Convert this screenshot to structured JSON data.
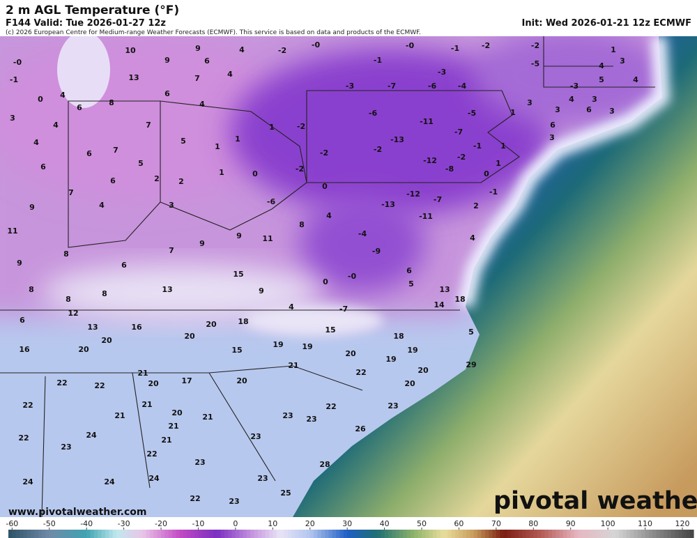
{
  "header": {
    "title": "2 m AGL Temperature (°F)",
    "valid": "F144 Valid: Tue 2026-01-27 12z",
    "credit": "(c) 2026 European Centre for Medium-range Weather Forecasts (ECMWF). This service is based on data and products of the ECMWF.",
    "init": "Init: Wed 2026-01-21 12z ECMWF"
  },
  "footer": {
    "website": "www.pivotalweather.com",
    "logo": "pivotal weather"
  },
  "map": {
    "stations": [
      {
        "value": 0,
        "label": "-0"
      },
      10,
      9,
      4,
      -2,
      {
        "value": 0,
        "label": "-0"
      },
      {
        "value": 0,
        "label": "-0"
      },
      -1,
      -2,
      -2,
      1,
      -1,
      9,
      6,
      -1,
      -5,
      4,
      3,
      13,
      7,
      -3,
      5,
      4,
      4,
      6,
      4,
      -3,
      -7,
      -6,
      -4,
      -3,
      0,
      6,
      8,
      4,
      3,
      4,
      3,
      3,
      4,
      7,
      1,
      -2,
      -6,
      -11,
      -5,
      1,
      3,
      6,
      3,
      4,
      6,
      7,
      5,
      1,
      1,
      -13,
      -7,
      1,
      6,
      3,
      6,
      5,
      -2,
      -2,
      -12,
      -2,
      -1,
      2,
      6,
      2,
      1,
      0,
      -2,
      -8,
      0,
      1,
      7,
      4,
      0,
      -12,
      -7,
      -1,
      2,
      9,
      3,
      -6,
      4,
      -13,
      11,
      8,
      -11,
      9,
      11,
      8,
      7,
      9,
      -4,
      4,
      9,
      6,
      -9,
      15,
      0,
      {
        "value": 0,
        "label": "-0"
      },
      6,
      5,
      13,
      8,
      8,
      13,
      9,
      8,
      18,
      4,
      -7,
      14,
      12,
      6,
      13,
      16,
      20,
      18,
      15,
      5,
      20,
      20,
      18,
      16,
      20,
      19,
      19,
      15,
      19,
      20,
      19,
      29,
      20,
      21,
      22,
      21,
      20,
      17,
      20,
      22,
      22,
      20,
      22,
      21,
      22,
      23,
      21,
      20,
      21,
      23,
      23,
      21,
      26,
      22,
      24,
      21,
      23,
      23,
      22,
      23,
      28,
      24,
      24,
      24,
      23,
      25,
      22,
      23
    ]
  },
  "colorbar": {
    "lim": [
      -61,
      123
    ],
    "ticks": [
      -60,
      -50,
      -40,
      -30,
      -20,
      -10,
      0,
      10,
      20,
      30,
      40,
      50,
      60,
      70,
      80,
      90,
      100,
      110,
      120
    ],
    "stops": [
      {
        "value": -61,
        "color": "#2e5266"
      },
      {
        "value": -50,
        "color": "#6f8aa8"
      },
      {
        "value": -40,
        "color": "#3fa3b0"
      },
      {
        "value": -32,
        "color": "#bfe8ee"
      },
      {
        "value": -25,
        "color": "#e8c6e8"
      },
      {
        "value": -15,
        "color": "#c24bc4"
      },
      {
        "value": -5,
        "color": "#7a2fc0"
      },
      {
        "value": 5,
        "color": "#c99ae0"
      },
      {
        "value": 12,
        "color": "#e9e4f6"
      },
      {
        "value": 20,
        "color": "#b3c6ee"
      },
      {
        "value": 30,
        "color": "#1f5fc4"
      },
      {
        "value": 38,
        "color": "#1f6f73"
      },
      {
        "value": 48,
        "color": "#8fb36a"
      },
      {
        "value": 56,
        "color": "#e9de9c"
      },
      {
        "value": 64,
        "color": "#c79c5c"
      },
      {
        "value": 72,
        "color": "#7a1d12"
      },
      {
        "value": 82,
        "color": "#b45a55"
      },
      {
        "value": 92,
        "color": "#e6b7c2"
      },
      {
        "value": 102,
        "color": "#d6d6d6"
      },
      {
        "value": 112,
        "color": "#8c8c8c"
      },
      {
        "value": 123,
        "color": "#444444"
      }
    ]
  }
}
